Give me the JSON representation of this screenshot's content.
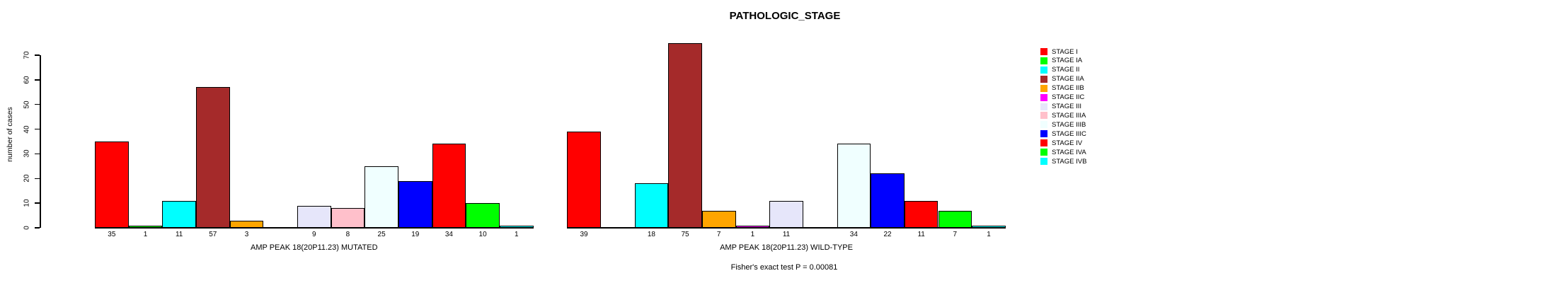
{
  "chart_data": {
    "type": "bar",
    "title": "PATHOLOGIC_STAGE",
    "ylabel": "number of cases",
    "annotation": "Fisher's exact test P = 0.00081",
    "ylim": [
      0,
      70
    ],
    "yticks": [
      0,
      10,
      20,
      30,
      40,
      50,
      60,
      70
    ],
    "grid": false,
    "legend_position": "right",
    "bar_border_color": "#000000",
    "categories": [
      "STAGE I",
      "STAGE IA",
      "STAGE II",
      "STAGE IIA",
      "STAGE IIB",
      "STAGE IIC",
      "STAGE III",
      "STAGE IIIA",
      "STAGE IIIB",
      "STAGE IIIC",
      "STAGE IV",
      "STAGE IVA",
      "STAGE IVB"
    ],
    "colors": [
      "#FF0000",
      "#00FF00",
      "#00FFFF",
      "#A52A2A",
      "#FFA500",
      "#FF00FF",
      "#E6E6FA",
      "#FFC0CB",
      "#F0FFFF",
      "#0000FF",
      "#FF0000",
      "#00FF00",
      "#00FFFF"
    ],
    "series": [
      {
        "name": "AMP PEAK 18(20P11.23) MUTATED",
        "values": [
          35,
          1,
          11,
          57,
          3,
          0,
          9,
          8,
          25,
          19,
          34,
          10,
          1
        ]
      },
      {
        "name": "AMP PEAK 18(20P11.23) WILD-TYPE",
        "values": [
          39,
          0,
          18,
          75,
          7,
          1,
          11,
          0,
          34,
          22,
          11,
          7,
          1
        ]
      }
    ],
    "value_label_rule": "shown under each bar; zero values have no bar and no label"
  }
}
